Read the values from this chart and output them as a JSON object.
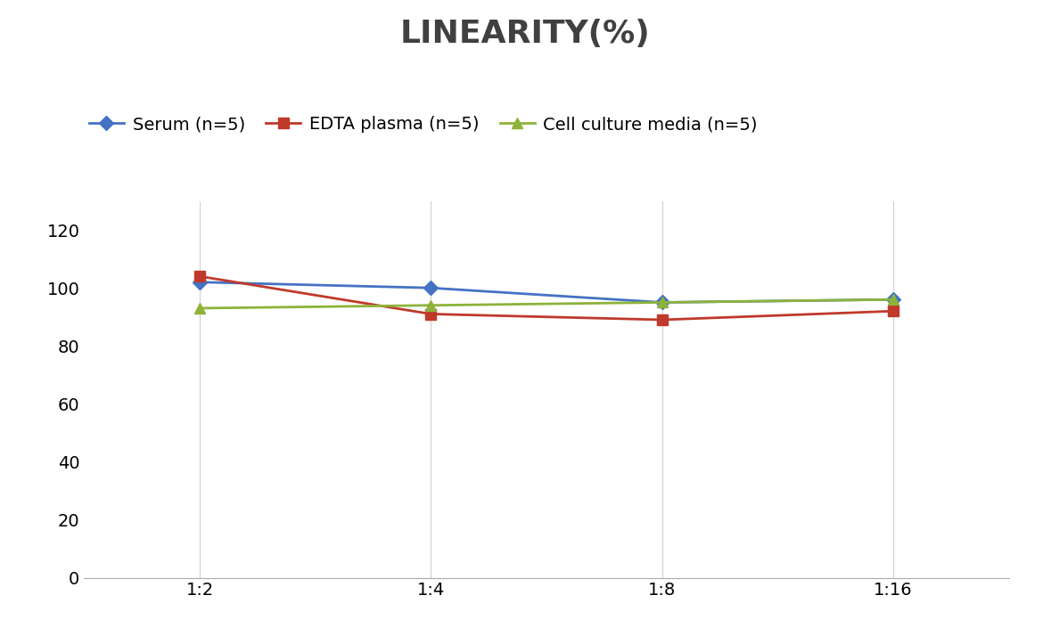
{
  "title": "LINEARITY(%)",
  "title_fontsize": 26,
  "title_fontweight": "bold",
  "title_color": "#404040",
  "x_labels": [
    "1:2",
    "1:4",
    "1:8",
    "1:16"
  ],
  "x_positions": [
    0,
    1,
    2,
    3
  ],
  "series": [
    {
      "label": "Serum (n=5)",
      "values": [
        102,
        100,
        95,
        96
      ],
      "color": "#4472C4",
      "marker": "D",
      "markersize": 8,
      "linewidth": 2
    },
    {
      "label": "EDTA plasma (n=5)",
      "values": [
        104,
        91,
        89,
        92
      ],
      "color": "#C0392B",
      "marker": "s",
      "markersize": 8,
      "linewidth": 2
    },
    {
      "label": "Cell culture media (n=5)",
      "values": [
        93,
        94,
        95,
        96
      ],
      "color": "#8DB33A",
      "marker": "^",
      "markersize": 8,
      "linewidth": 2
    }
  ],
  "ylim": [
    0,
    130
  ],
  "yticks": [
    0,
    20,
    40,
    60,
    80,
    100,
    120
  ],
  "background_color": "#ffffff",
  "grid_color": "#d0d0d0",
  "legend_fontsize": 14,
  "tick_fontsize": 14,
  "figsize": [
    11.79,
    7.05
  ],
  "dpi": 100
}
